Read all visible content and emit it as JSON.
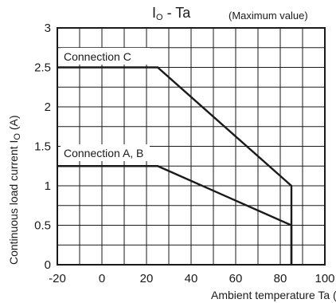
{
  "chart_data": {
    "type": "line",
    "title_main": "I",
    "title_sub": "O",
    "title_rest": " - Ta",
    "subtitle": "(Maximum value)",
    "xlabel": "Ambient temperature Ta (°C)",
    "ylabel_main": "Continuous load current I",
    "ylabel_sub": "O",
    "ylabel_rest": " (A)",
    "xlim": [
      -20,
      100
    ],
    "ylim": [
      0,
      3
    ],
    "x_ticks": [
      -20,
      0,
      20,
      40,
      60,
      80,
      100
    ],
    "y_ticks": [
      0,
      0.5,
      1,
      1.5,
      2,
      2.5,
      3
    ],
    "x_tick_labels": [
      "-20",
      "0",
      "20",
      "40",
      "60",
      "80",
      "100"
    ],
    "y_tick_labels": [
      "0",
      "0.5",
      "1",
      "1.5",
      "2",
      "2.5",
      "3"
    ],
    "x_grid_step": 10,
    "y_grid_step": 0.25,
    "grid": true,
    "series": [
      {
        "name": "Connection C",
        "x": [
          -20,
          25,
          85,
          85
        ],
        "y": [
          2.5,
          2.5,
          1.0,
          0
        ]
      },
      {
        "name": "Connection A, B",
        "x": [
          -20,
          25,
          85,
          85
        ],
        "y": [
          1.25,
          1.25,
          0.5,
          0
        ]
      }
    ]
  }
}
